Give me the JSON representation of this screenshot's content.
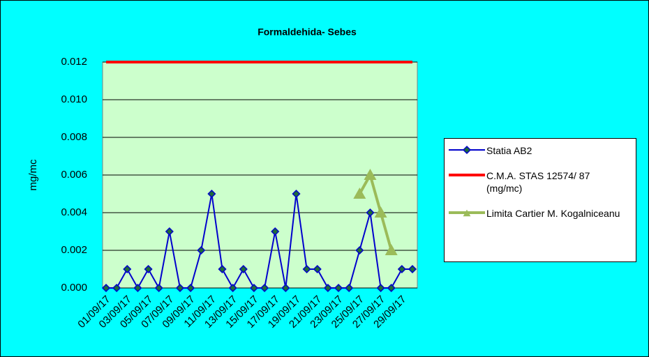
{
  "chart_data": {
    "type": "line",
    "title": "Formaldehida- Sebes",
    "y_label": "mg/mc",
    "categories": [
      "01/09/17",
      null,
      "03/09/17",
      null,
      "05/09/17",
      null,
      "07/09/17",
      null,
      "09/09/17",
      null,
      "11/09/17",
      null,
      "13/09/17",
      null,
      "15/09/17",
      null,
      "17/09/17",
      null,
      "19/09/17",
      null,
      "21/09/17",
      null,
      "23/09/17",
      null,
      "25/09/17",
      null,
      "27/09/17",
      null,
      "29/09/17",
      null
    ],
    "series": [
      {
        "name": "Statia AB2",
        "color": "#0000cc",
        "marker": "diamond",
        "values": [
          0,
          0,
          0.001,
          0,
          0.001,
          0,
          0.003,
          0,
          0,
          0.002,
          0.005,
          0.001,
          0,
          0.001,
          0,
          0,
          0.003,
          0,
          0.005,
          0.001,
          0.001,
          0,
          0,
          0,
          0.002,
          0.004,
          0,
          0,
          0.001,
          0.001
        ]
      },
      {
        "name": "C.M.A. STAS 12574/ 87 (mg/mc)",
        "color": "#ff0000",
        "marker": "none",
        "values": [
          0.012,
          0.012,
          0.012,
          0.012,
          0.012,
          0.012,
          0.012,
          0.012,
          0.012,
          0.012,
          0.012,
          0.012,
          0.012,
          0.012,
          0.012,
          0.012,
          0.012,
          0.012,
          0.012,
          0.012,
          0.012,
          0.012,
          0.012,
          0.012,
          0.012,
          0.012,
          0.012,
          0.012,
          0.012,
          0.012
        ]
      },
      {
        "name": "Limita Cartier M. Kogalniceanu",
        "color": "#9bbb59",
        "marker": "triangle",
        "values": [
          null,
          null,
          null,
          null,
          null,
          null,
          null,
          null,
          null,
          null,
          null,
          null,
          null,
          null,
          null,
          null,
          null,
          null,
          null,
          null,
          null,
          null,
          null,
          null,
          0.005,
          0.006,
          0.004,
          0.002,
          null,
          null
        ]
      }
    ],
    "ylim": [
      0,
      0.012
    ],
    "yticks": [
      {
        "value": 0,
        "label": "0.000"
      },
      {
        "value": 0.002,
        "label": "0.002"
      },
      {
        "value": 0.004,
        "label": "0.004"
      },
      {
        "value": 0.006,
        "label": "0.006"
      },
      {
        "value": 0.008,
        "label": "0.008"
      },
      {
        "value": 0.01,
        "label": "0.010"
      },
      {
        "value": 0.012,
        "label": "0.012"
      }
    ],
    "grid": true,
    "legend": "right"
  }
}
